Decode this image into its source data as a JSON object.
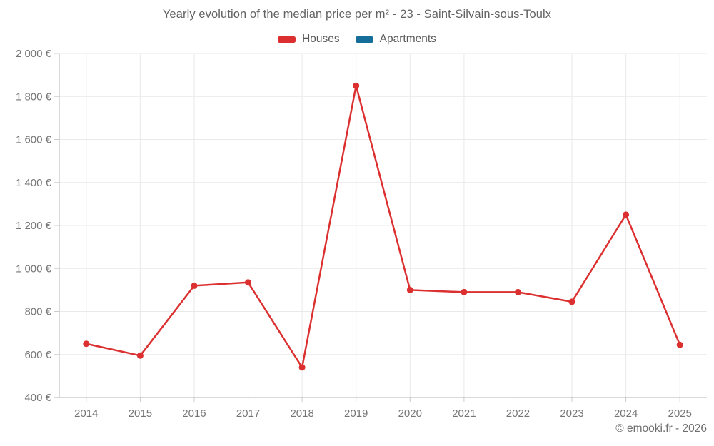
{
  "title": "Yearly evolution of the median price per m² - 23 - Saint-Silvain-sous-Toulx",
  "legend": {
    "items": [
      {
        "label": "Houses",
        "color": "#dc3030"
      },
      {
        "label": "Apartments",
        "color": "#146e99"
      }
    ]
  },
  "footer": {
    "copyright": "© emooki.fr - 2026"
  },
  "colors": {
    "grid": "#e9e9e9",
    "axis": "#b3b3b3",
    "tick": "#cccccc",
    "tick_label": "#757575",
    "title_text": "#636363"
  },
  "chart_data": {
    "type": "line",
    "title": "Yearly evolution of the median price per m² - 23 - Saint-Silvain-sous-Toulx",
    "categories": [
      "2014",
      "2015",
      "2016",
      "2017",
      "2018",
      "2019",
      "2020",
      "2021",
      "2022",
      "2023",
      "2024",
      "2025"
    ],
    "series": [
      {
        "name": "Houses",
        "color": "#dc3030",
        "values": [
          650,
          595,
          920,
          935,
          540,
          1850,
          900,
          890,
          890,
          845,
          1250,
          645
        ]
      },
      {
        "name": "Apartments",
        "color": "#146e99",
        "values": []
      }
    ],
    "xlabel": "",
    "ylabel": "",
    "ylim": [
      400,
      2000
    ],
    "ytick_step": 200,
    "ytick_suffix": " €",
    "grid": true,
    "legend_position": "top",
    "marker_radius": 4.5,
    "line_width": 2.5
  }
}
